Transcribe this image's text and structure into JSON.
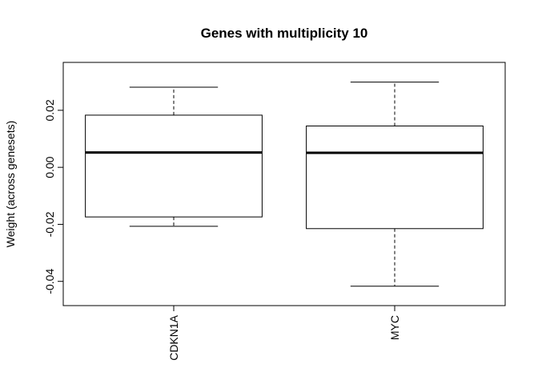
{
  "chart_data": {
    "type": "boxplot",
    "title": "Genes with multiplicity 10",
    "xlabel": "",
    "ylabel": "Weight (across genesets)",
    "ylim": [
      -0.0485,
      0.0368
    ],
    "yticks": [
      -0.04,
      -0.02,
      0.0,
      0.02
    ],
    "ytick_labels": [
      "-0.04",
      "-0.02",
      "0.00",
      "0.02"
    ],
    "categories": [
      "CDKN1A",
      "MYC"
    ],
    "boxes": [
      {
        "label": "CDKN1A",
        "whisker_low": -0.0207,
        "q1": -0.0174,
        "median": 0.0052,
        "q3": 0.0183,
        "whisker_high": 0.0281
      },
      {
        "label": "MYC",
        "whisker_low": -0.0417,
        "q1": -0.0215,
        "median": 0.0051,
        "q3": 0.0145,
        "whisker_high": 0.0299
      }
    ],
    "grid": false,
    "legend": "none"
  }
}
